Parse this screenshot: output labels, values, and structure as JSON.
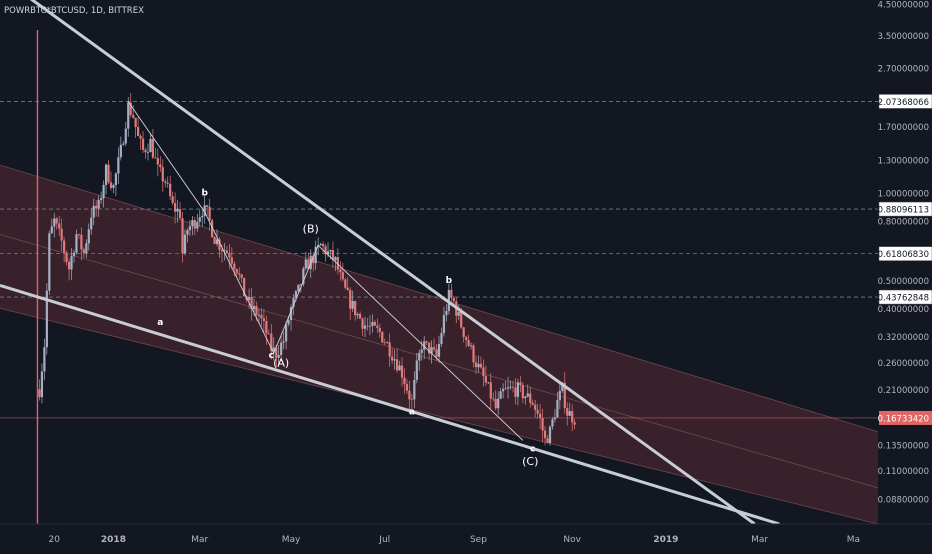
{
  "header": {
    "symbol_label": "POWRBTC*BTCUSD, 1D, BITTREX"
  },
  "colors": {
    "background": "#131722",
    "up_candle": "#a5b1c2",
    "down_candle": "#e07b7b",
    "channel_fill": "#5a2a33",
    "trendline": "#c8ccd4",
    "wave_line": "#d1d4dc",
    "last_price_bg": "#e06666",
    "level_label_bg": "#ffffff",
    "axis_text": "#b2b5be",
    "vertical_marker": "#e06666"
  },
  "chart_data": {
    "type": "candlestick",
    "title": "POWRBTC*BTCUSD, 1D, BITTREX",
    "y_scale": "log",
    "ylim": [
      0.072,
      4.5
    ],
    "x_ticks": [
      "20",
      "2018",
      "Mar",
      "May",
      "Jul",
      "Sep",
      "Nov",
      "2019",
      "Mar",
      "Ma"
    ],
    "y_ticks": [
      {
        "value": 4.5,
        "label": "4.50000000"
      },
      {
        "value": 3.5,
        "label": "3.50000000"
      },
      {
        "value": 2.7,
        "label": "2.70000000"
      },
      {
        "value": 1.7,
        "label": "1.70000000"
      },
      {
        "value": 1.3,
        "label": "1.30000000"
      },
      {
        "value": 1.0,
        "label": "1.00000000"
      },
      {
        "value": 0.8,
        "label": "0.80000000"
      },
      {
        "value": 0.5,
        "label": "0.50000000"
      },
      {
        "value": 0.4,
        "label": "0.40000000"
      },
      {
        "value": 0.32,
        "label": "0.32000000"
      },
      {
        "value": 0.26,
        "label": "0.26000000"
      },
      {
        "value": 0.21,
        "label": "0.21000000"
      },
      {
        "value": 0.135,
        "label": "0.13500000"
      },
      {
        "value": 0.11,
        "label": "0.11000000"
      },
      {
        "value": 0.088,
        "label": "0.08800000"
      }
    ],
    "level_lines": [
      {
        "value": 2.07368066,
        "label": "2.07368066"
      },
      {
        "value": 0.88096113,
        "label": "0.88096113"
      },
      {
        "value": 0.6180683,
        "label": "0.61806830"
      },
      {
        "value": 0.43762848,
        "label": "0.43762848"
      }
    ],
    "last_price": {
      "value": 0.1673342,
      "label": "0.16733420"
    },
    "price_path": [
      [
        0,
        0.21
      ],
      [
        2,
        0.3
      ],
      [
        4,
        0.7
      ],
      [
        6,
        0.8
      ],
      [
        9,
        0.68
      ],
      [
        12,
        0.55
      ],
      [
        15,
        0.72
      ],
      [
        18,
        0.62
      ],
      [
        21,
        0.85
      ],
      [
        24,
        0.9
      ],
      [
        27,
        1.2
      ],
      [
        30,
        1.05
      ],
      [
        33,
        1.4
      ],
      [
        36,
        2.0
      ],
      [
        38,
        1.85
      ],
      [
        40,
        1.55
      ],
      [
        42,
        1.4
      ],
      [
        45,
        1.5
      ],
      [
        48,
        1.2
      ],
      [
        51,
        1.1
      ],
      [
        54,
        0.9
      ],
      [
        57,
        0.85
      ],
      [
        58,
        0.62
      ],
      [
        60,
        0.75
      ],
      [
        63,
        0.8
      ],
      [
        66,
        0.88
      ],
      [
        68,
        0.85
      ],
      [
        71,
        0.7
      ],
      [
        74,
        0.65
      ],
      [
        77,
        0.62
      ],
      [
        80,
        0.55
      ],
      [
        83,
        0.45
      ],
      [
        86,
        0.4
      ],
      [
        89,
        0.38
      ],
      [
        92,
        0.33
      ],
      [
        94,
        0.29
      ],
      [
        96,
        0.28
      ],
      [
        99,
        0.31
      ],
      [
        102,
        0.4
      ],
      [
        105,
        0.46
      ],
      [
        108,
        0.56
      ],
      [
        111,
        0.6
      ],
      [
        114,
        0.66
      ],
      [
        117,
        0.62
      ],
      [
        120,
        0.58
      ],
      [
        123,
        0.48
      ],
      [
        126,
        0.42
      ],
      [
        129,
        0.38
      ],
      [
        132,
        0.35
      ],
      [
        135,
        0.34
      ],
      [
        138,
        0.33
      ],
      [
        141,
        0.3
      ],
      [
        144,
        0.27
      ],
      [
        147,
        0.24
      ],
      [
        150,
        0.2
      ],
      [
        151,
        0.19
      ],
      [
        153,
        0.25
      ],
      [
        155,
        0.3
      ],
      [
        158,
        0.29
      ],
      [
        161,
        0.27
      ],
      [
        164,
        0.37
      ],
      [
        166,
        0.44
      ],
      [
        168,
        0.42
      ],
      [
        171,
        0.35
      ],
      [
        174,
        0.3
      ],
      [
        177,
        0.26
      ],
      [
        180,
        0.23
      ],
      [
        183,
        0.2
      ],
      [
        185,
        0.18
      ],
      [
        188,
        0.205
      ],
      [
        191,
        0.21
      ],
      [
        194,
        0.21
      ],
      [
        197,
        0.2
      ],
      [
        200,
        0.19
      ],
      [
        203,
        0.165
      ],
      [
        205,
        0.14
      ],
      [
        207,
        0.15
      ],
      [
        210,
        0.19
      ],
      [
        212,
        0.21
      ],
      [
        214,
        0.175
      ],
      [
        217,
        0.167
      ]
    ],
    "candle_x_range": [
      0,
      217
    ],
    "date_ticks": [
      {
        "label": "20",
        "x": 6
      },
      {
        "label": "2018",
        "x": 30
      },
      {
        "label": "Mar",
        "x": 65
      },
      {
        "label": "May",
        "x": 102
      },
      {
        "label": "Jul",
        "x": 140
      },
      {
        "label": "Sep",
        "x": 178
      },
      {
        "label": "Nov",
        "x": 216
      },
      {
        "label": "2019",
        "x": 254
      },
      {
        "label": "Mar",
        "x": 292
      },
      {
        "label": "Ma",
        "x": 330
      }
    ],
    "x_range": [
      -16,
      340
    ],
    "trendlines": [
      {
        "name": "upper-trendline",
        "from": [
          -16,
          5.6
        ],
        "to": [
          290,
          0.072
        ]
      },
      {
        "name": "lower-trendline",
        "from": [
          -16,
          0.48
        ],
        "to": [
          300,
          0.072
        ]
      }
    ],
    "channel": {
      "upper": {
        "from": [
          -16,
          1.25
        ],
        "to": [
          340,
          0.15
        ]
      },
      "lower": {
        "from": [
          -16,
          0.4
        ],
        "to": [
          340,
          0.072
        ]
      },
      "mid": {
        "from": [
          -16,
          0.72
        ],
        "to": [
          340,
          0.096
        ]
      }
    },
    "wave_path": [
      [
        36,
        2.07
      ],
      [
        67,
        0.86
      ],
      [
        95,
        0.28
      ],
      [
        113,
        0.66
      ],
      [
        196,
        0.14
      ]
    ],
    "wave_labels": [
      {
        "text": "b",
        "x": 67,
        "y": 0.98
      },
      {
        "text": "a",
        "x": 49,
        "y": 0.35
      },
      {
        "text": "c",
        "x": 94,
        "y": 0.27
      },
      {
        "text": "(A)",
        "x": 98,
        "y": 0.252
      },
      {
        "text": "(B)",
        "x": 110,
        "y": 0.73
      },
      {
        "text": "b",
        "x": 166,
        "y": 0.49
      },
      {
        "text": "a",
        "x": 151,
        "y": 0.172
      },
      {
        "text": "c",
        "x": 200,
        "y": 0.128
      },
      {
        "text": "(C)",
        "x": 199,
        "y": 0.115
      }
    ],
    "vertical_marker_x": 0
  }
}
